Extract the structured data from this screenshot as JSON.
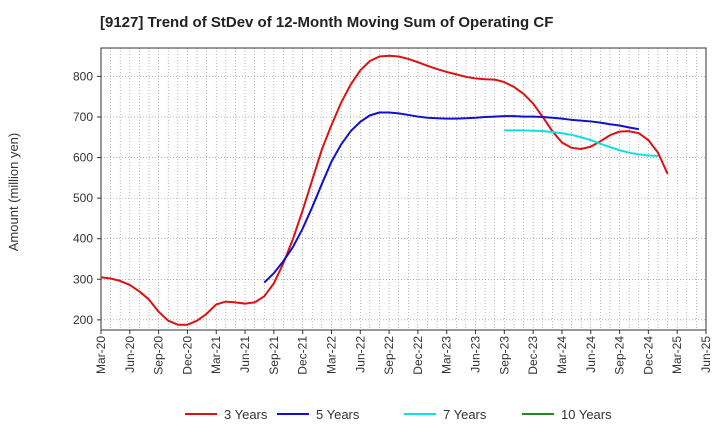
{
  "chart_data": {
    "type": "line",
    "title": "[9127]  Trend of StDev of 12-Month Moving Sum of Operating CF",
    "ylabel": "Amount (million yen)",
    "xlabel": "",
    "ylim": [
      175,
      870
    ],
    "yticks": [
      200,
      300,
      400,
      500,
      600,
      700,
      800
    ],
    "x_tick_labels": [
      "Mar-20",
      "Jun-20",
      "Sep-20",
      "Dec-20",
      "Mar-21",
      "Jun-21",
      "Sep-21",
      "Dec-21",
      "Mar-22",
      "Jun-22",
      "Sep-22",
      "Dec-22",
      "Mar-23",
      "Jun-23",
      "Sep-23",
      "Dec-23",
      "Mar-24",
      "Jun-24",
      "Sep-24",
      "Dec-24",
      "Mar-25",
      "Jun-25"
    ],
    "grid": true,
    "legend_position": "bottom",
    "series": [
      {
        "name": "3 Years",
        "color": "#dd1111",
        "start": "Mar-20",
        "values": [
          305,
          302,
          296,
          286,
          270,
          250,
          220,
          198,
          188,
          188,
          198,
          215,
          238,
          245,
          243,
          240,
          243,
          258,
          290,
          340,
          400,
          470,
          545,
          620,
          680,
          735,
          780,
          815,
          838,
          849,
          851,
          849,
          843,
          835,
          826,
          818,
          811,
          805,
          799,
          795,
          793,
          792,
          786,
          774,
          757,
          733,
          700,
          665,
          637,
          624,
          621,
          627,
          640,
          655,
          664,
          665,
          660,
          643,
          612,
          560
        ],
        "colors_note": "red"
      },
      {
        "name": "5 Years",
        "color": "#1111cc",
        "start": "Aug-21",
        "values": [
          292,
          315,
          345,
          380,
          425,
          478,
          535,
          590,
          632,
          665,
          688,
          704,
          711,
          711,
          709,
          705,
          701,
          698,
          697,
          696,
          696,
          697,
          698,
          700,
          701,
          702,
          702,
          701,
          701,
          700,
          698,
          696,
          693,
          691,
          689,
          686,
          682,
          679,
          674,
          670
        ]
      },
      {
        "name": "7 Years",
        "color": "#11e0e0",
        "start": "Sep-23",
        "values": [
          667,
          667,
          667,
          666,
          665,
          663,
          660,
          656,
          650,
          643,
          634,
          626,
          618,
          612,
          608,
          605,
          604
        ]
      },
      {
        "name": "10 Years",
        "color": "#228822",
        "start": "Sep-23",
        "values": []
      }
    ]
  }
}
